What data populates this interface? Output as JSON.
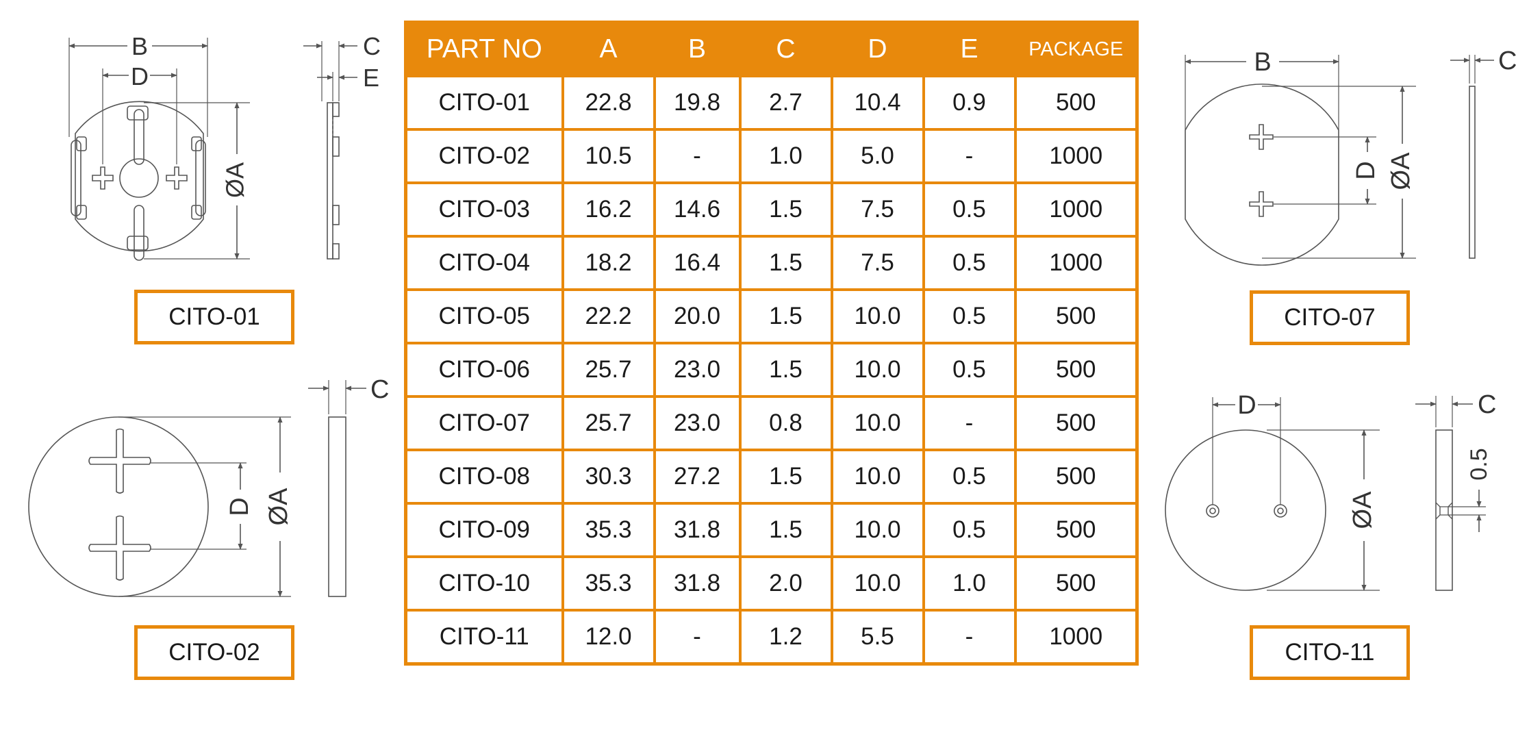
{
  "table": {
    "headers": [
      "PART NO",
      "A",
      "B",
      "C",
      "D",
      "E",
      "PACKAGE"
    ],
    "rows": [
      [
        "CITO-01",
        "22.8",
        "19.8",
        "2.7",
        "10.4",
        "0.9",
        "500"
      ],
      [
        "CITO-02",
        "10.5",
        "-",
        "1.0",
        "5.0",
        "-",
        "1000"
      ],
      [
        "CITO-03",
        "16.2",
        "14.6",
        "1.5",
        "7.5",
        "0.5",
        "1000"
      ],
      [
        "CITO-04",
        "18.2",
        "16.4",
        "1.5",
        "7.5",
        "0.5",
        "1000"
      ],
      [
        "CITO-05",
        "22.2",
        "20.0",
        "1.5",
        "10.0",
        "0.5",
        "500"
      ],
      [
        "CITO-06",
        "25.7",
        "23.0",
        "1.5",
        "10.0",
        "0.5",
        "500"
      ],
      [
        "CITO-07",
        "25.7",
        "23.0",
        "0.8",
        "10.0",
        "-",
        "500"
      ],
      [
        "CITO-08",
        "30.3",
        "27.2",
        "1.5",
        "10.0",
        "0.5",
        "500"
      ],
      [
        "CITO-09",
        "35.3",
        "31.8",
        "1.5",
        "10.0",
        "0.5",
        "500"
      ],
      [
        "CITO-10",
        "35.3",
        "31.8",
        "2.0",
        "10.0",
        "1.0",
        "500"
      ],
      [
        "CITO-11",
        "12.0",
        "-",
        "1.2",
        "5.5",
        "-",
        "1000"
      ]
    ]
  },
  "part_labels": {
    "cito_01": "CITO-01",
    "cito_02": "CITO-02",
    "cito_07": "CITO-07",
    "cito_11": "CITO-11"
  },
  "dimension_labels": {
    "A": "ØA",
    "B": "B",
    "C": "C",
    "D": "D",
    "E": "E",
    "groove": "0.5"
  },
  "colors": {
    "accent": "#e8890c",
    "line": "#555555",
    "text": "#1a1a1a"
  }
}
